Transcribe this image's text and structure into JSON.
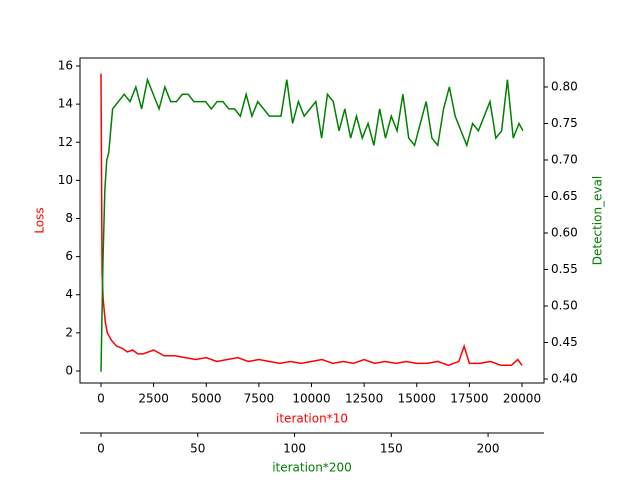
{
  "chart_data": {
    "type": "line",
    "xlabel": "iteration*10",
    "x2label": "iteration*200",
    "ylabel": "Loss",
    "y2label": "Detection_eval",
    "xlim": [
      -998,
      21045
    ],
    "xticks": [
      0,
      2500,
      5000,
      7500,
      10000,
      12500,
      15000,
      17500,
      20000
    ],
    "x2lim": [
      -10.85,
      228.9
    ],
    "x2ticks": [
      0,
      50,
      100,
      150,
      200
    ],
    "ylim": [
      -0.63,
      16.42
    ],
    "yticks": [
      0,
      2,
      4,
      6,
      8,
      10,
      12,
      14,
      16
    ],
    "y2lim": [
      0.3945,
      0.8397
    ],
    "y2ticks": [
      {
        "value": 0.4,
        "label": "0.40"
      },
      0.45,
      {
        "value": 0.5,
        "label": "0.50"
      },
      0.55,
      {
        "value": 0.6,
        "label": "0.60"
      },
      0.65,
      {
        "value": 0.7,
        "label": "0.70"
      },
      0.75,
      {
        "value": 0.8,
        "label": "0.80"
      }
    ],
    "series": [
      {
        "color": "#ff0000",
        "x": [
          0,
          50,
          100,
          200,
          300,
          500,
          750,
          1000,
          1250,
          1500,
          1750,
          2000,
          2500,
          3000,
          3500,
          4000,
          4500,
          5000,
          5500,
          6000,
          6500,
          7000,
          7500,
          8000,
          8500,
          9000,
          9500,
          10000,
          10500,
          11000,
          11500,
          12000,
          12500,
          13000,
          13500,
          14000,
          14500,
          15000,
          15500,
          16000,
          16500,
          17000,
          17250,
          17500,
          18000,
          18500,
          19000,
          19500,
          19800,
          20000
        ],
        "values": [
          15.6,
          5.2,
          3.8,
          2.6,
          2.0,
          1.6,
          1.3,
          1.2,
          1.0,
          1.1,
          0.9,
          0.9,
          1.1,
          0.8,
          0.8,
          0.7,
          0.6,
          0.7,
          0.5,
          0.6,
          0.7,
          0.5,
          0.6,
          0.5,
          0.4,
          0.5,
          0.4,
          0.5,
          0.6,
          0.4,
          0.5,
          0.4,
          0.6,
          0.4,
          0.5,
          0.4,
          0.5,
          0.4,
          0.4,
          0.5,
          0.3,
          0.5,
          1.3,
          0.4,
          0.4,
          0.5,
          0.3,
          0.3,
          0.6,
          0.3
        ]
      },
      {
        "color": "#008000",
        "axis": "y2",
        "xaxis": "x2",
        "x": [
          0,
          1,
          2,
          3,
          4,
          6,
          9,
          12,
          15,
          18,
          21,
          24,
          27,
          30,
          33,
          36,
          39,
          42,
          45,
          48,
          51,
          54,
          57,
          60,
          63,
          66,
          69,
          72,
          75,
          78,
          81,
          84,
          87,
          90,
          93,
          96,
          99,
          102,
          105,
          108,
          111,
          114,
          117,
          120,
          123,
          126,
          129,
          132,
          135,
          138,
          141,
          144,
          147,
          150,
          153,
          156,
          159,
          162,
          165,
          168,
          171,
          174,
          177,
          180,
          183,
          186,
          189,
          192,
          195,
          198,
          201,
          204,
          207,
          210,
          213,
          216,
          218
        ],
        "values": [
          0.41,
          0.56,
          0.66,
          0.7,
          0.71,
          0.77,
          0.78,
          0.79,
          0.78,
          0.8,
          0.77,
          0.81,
          0.79,
          0.77,
          0.8,
          0.78,
          0.78,
          0.79,
          0.79,
          0.78,
          0.78,
          0.78,
          0.77,
          0.78,
          0.78,
          0.77,
          0.77,
          0.76,
          0.79,
          0.76,
          0.78,
          0.77,
          0.76,
          0.76,
          0.76,
          0.81,
          0.75,
          0.78,
          0.76,
          0.77,
          0.78,
          0.73,
          0.79,
          0.78,
          0.74,
          0.77,
          0.73,
          0.76,
          0.73,
          0.75,
          0.72,
          0.77,
          0.73,
          0.76,
          0.74,
          0.79,
          0.73,
          0.72,
          0.75,
          0.78,
          0.73,
          0.72,
          0.77,
          0.8,
          0.76,
          0.74,
          0.72,
          0.75,
          0.74,
          0.76,
          0.78,
          0.73,
          0.74,
          0.81,
          0.73,
          0.75,
          0.74
        ]
      }
    ]
  }
}
